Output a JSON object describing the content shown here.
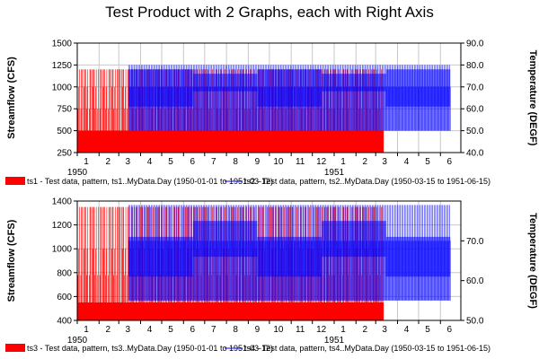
{
  "page": {
    "title": "Test Product with 2 Graphs, each with Right Axis"
  },
  "colors": {
    "series1": "#ff0000",
    "series2": "#0000ff",
    "grid": "#c8c8c8"
  },
  "chart_data": [
    {
      "type": "bar",
      "ylabel": "Streamflow (CFS)",
      "ylabel_right": "Temperature (DEGF)",
      "ylim": [
        250,
        1500
      ],
      "yticks": [
        "250",
        "500",
        "750",
        "1000",
        "1250",
        "1500"
      ],
      "ylim_right": [
        40,
        90
      ],
      "yticks_right": [
        "40.0",
        "50.0",
        "60.0",
        "70.0",
        "80.0",
        "90.0"
      ],
      "xlim": [
        "1950-01-01",
        "1951-06-30"
      ],
      "xticks_month": [
        "2",
        "3",
        "4",
        "5",
        "6",
        "7",
        "8",
        "9",
        "10",
        "11",
        "12",
        "2",
        "3",
        "4",
        "5",
        "6"
      ],
      "xticks_year": [
        "1950",
        "1951"
      ],
      "grid": true,
      "legend": [
        "ts1 - Test data, pattern, ts1..MyData.Day (1950-01-01 to 1951-03-12)",
        "ts2 - Test data, pattern, ts2..MyData.Day (1950-03-15 to 1951-06-15)"
      ],
      "series": [
        {
          "name": "ts1 - Test data, pattern, ts1..MyData.Day (1950-01-01 to 1951-03-12)",
          "axis": "left",
          "start": "1950-01-01",
          "end": "1951-03-12",
          "levels": [
            500,
            750,
            1000,
            1200
          ],
          "solid_below": 500
        },
        {
          "name": "ts2 - Test data, pattern, ts2..MyData.Day (1950-03-15 to 1951-06-15)",
          "axis": "right",
          "start": "1950-03-15",
          "end": "1951-06-15",
          "levels": [
            50,
            60,
            70,
            80
          ],
          "bands": [
            [
              61,
              78
            ],
            [
              68,
              76
            ]
          ]
        }
      ]
    },
    {
      "type": "bar",
      "ylabel": "Streamflow (CFS)",
      "ylabel_right": "Temperature (DEGF)",
      "ylim": [
        400,
        1400
      ],
      "yticks": [
        "400",
        "600",
        "800",
        "1000",
        "1200",
        "1400"
      ],
      "ylim_right": [
        50,
        80
      ],
      "yticks_right": [
        "50.0",
        "60.0",
        "70.0"
      ],
      "xlim": [
        "1950-01-01",
        "1951-06-30"
      ],
      "xticks_month": [
        "2",
        "3",
        "4",
        "5",
        "6",
        "7",
        "8",
        "9",
        "10",
        "11",
        "12",
        "2",
        "3",
        "4",
        "5",
        "6"
      ],
      "xticks_year": [
        "1950",
        "1951"
      ],
      "grid": true,
      "legend": [
        "ts3 - Test data, pattern, ts3..MyData.Day (1950-01-01 to 1951-03-12)",
        "ts4 - Test data, pattern, ts4..MyData.Day (1950-03-15 to 1951-06-15)"
      ],
      "series": [
        {
          "name": "ts3 - Test data, pattern, ts3..MyData.Day (1950-01-01 to 1951-03-12)",
          "axis": "left",
          "start": "1950-01-01",
          "end": "1951-03-12",
          "levels": [
            550,
            780,
            1000,
            1350
          ],
          "solid_below": 550
        },
        {
          "name": "ts4 - Test data, pattern, ts4..MyData.Day (1950-03-15 to 1951-06-15)",
          "axis": "right",
          "start": "1950-03-15",
          "end": "1951-06-15",
          "levels": [
            55,
            62,
            70,
            79
          ],
          "bands": [
            [
              61,
              71
            ],
            [
              66,
              75
            ]
          ]
        }
      ]
    }
  ]
}
